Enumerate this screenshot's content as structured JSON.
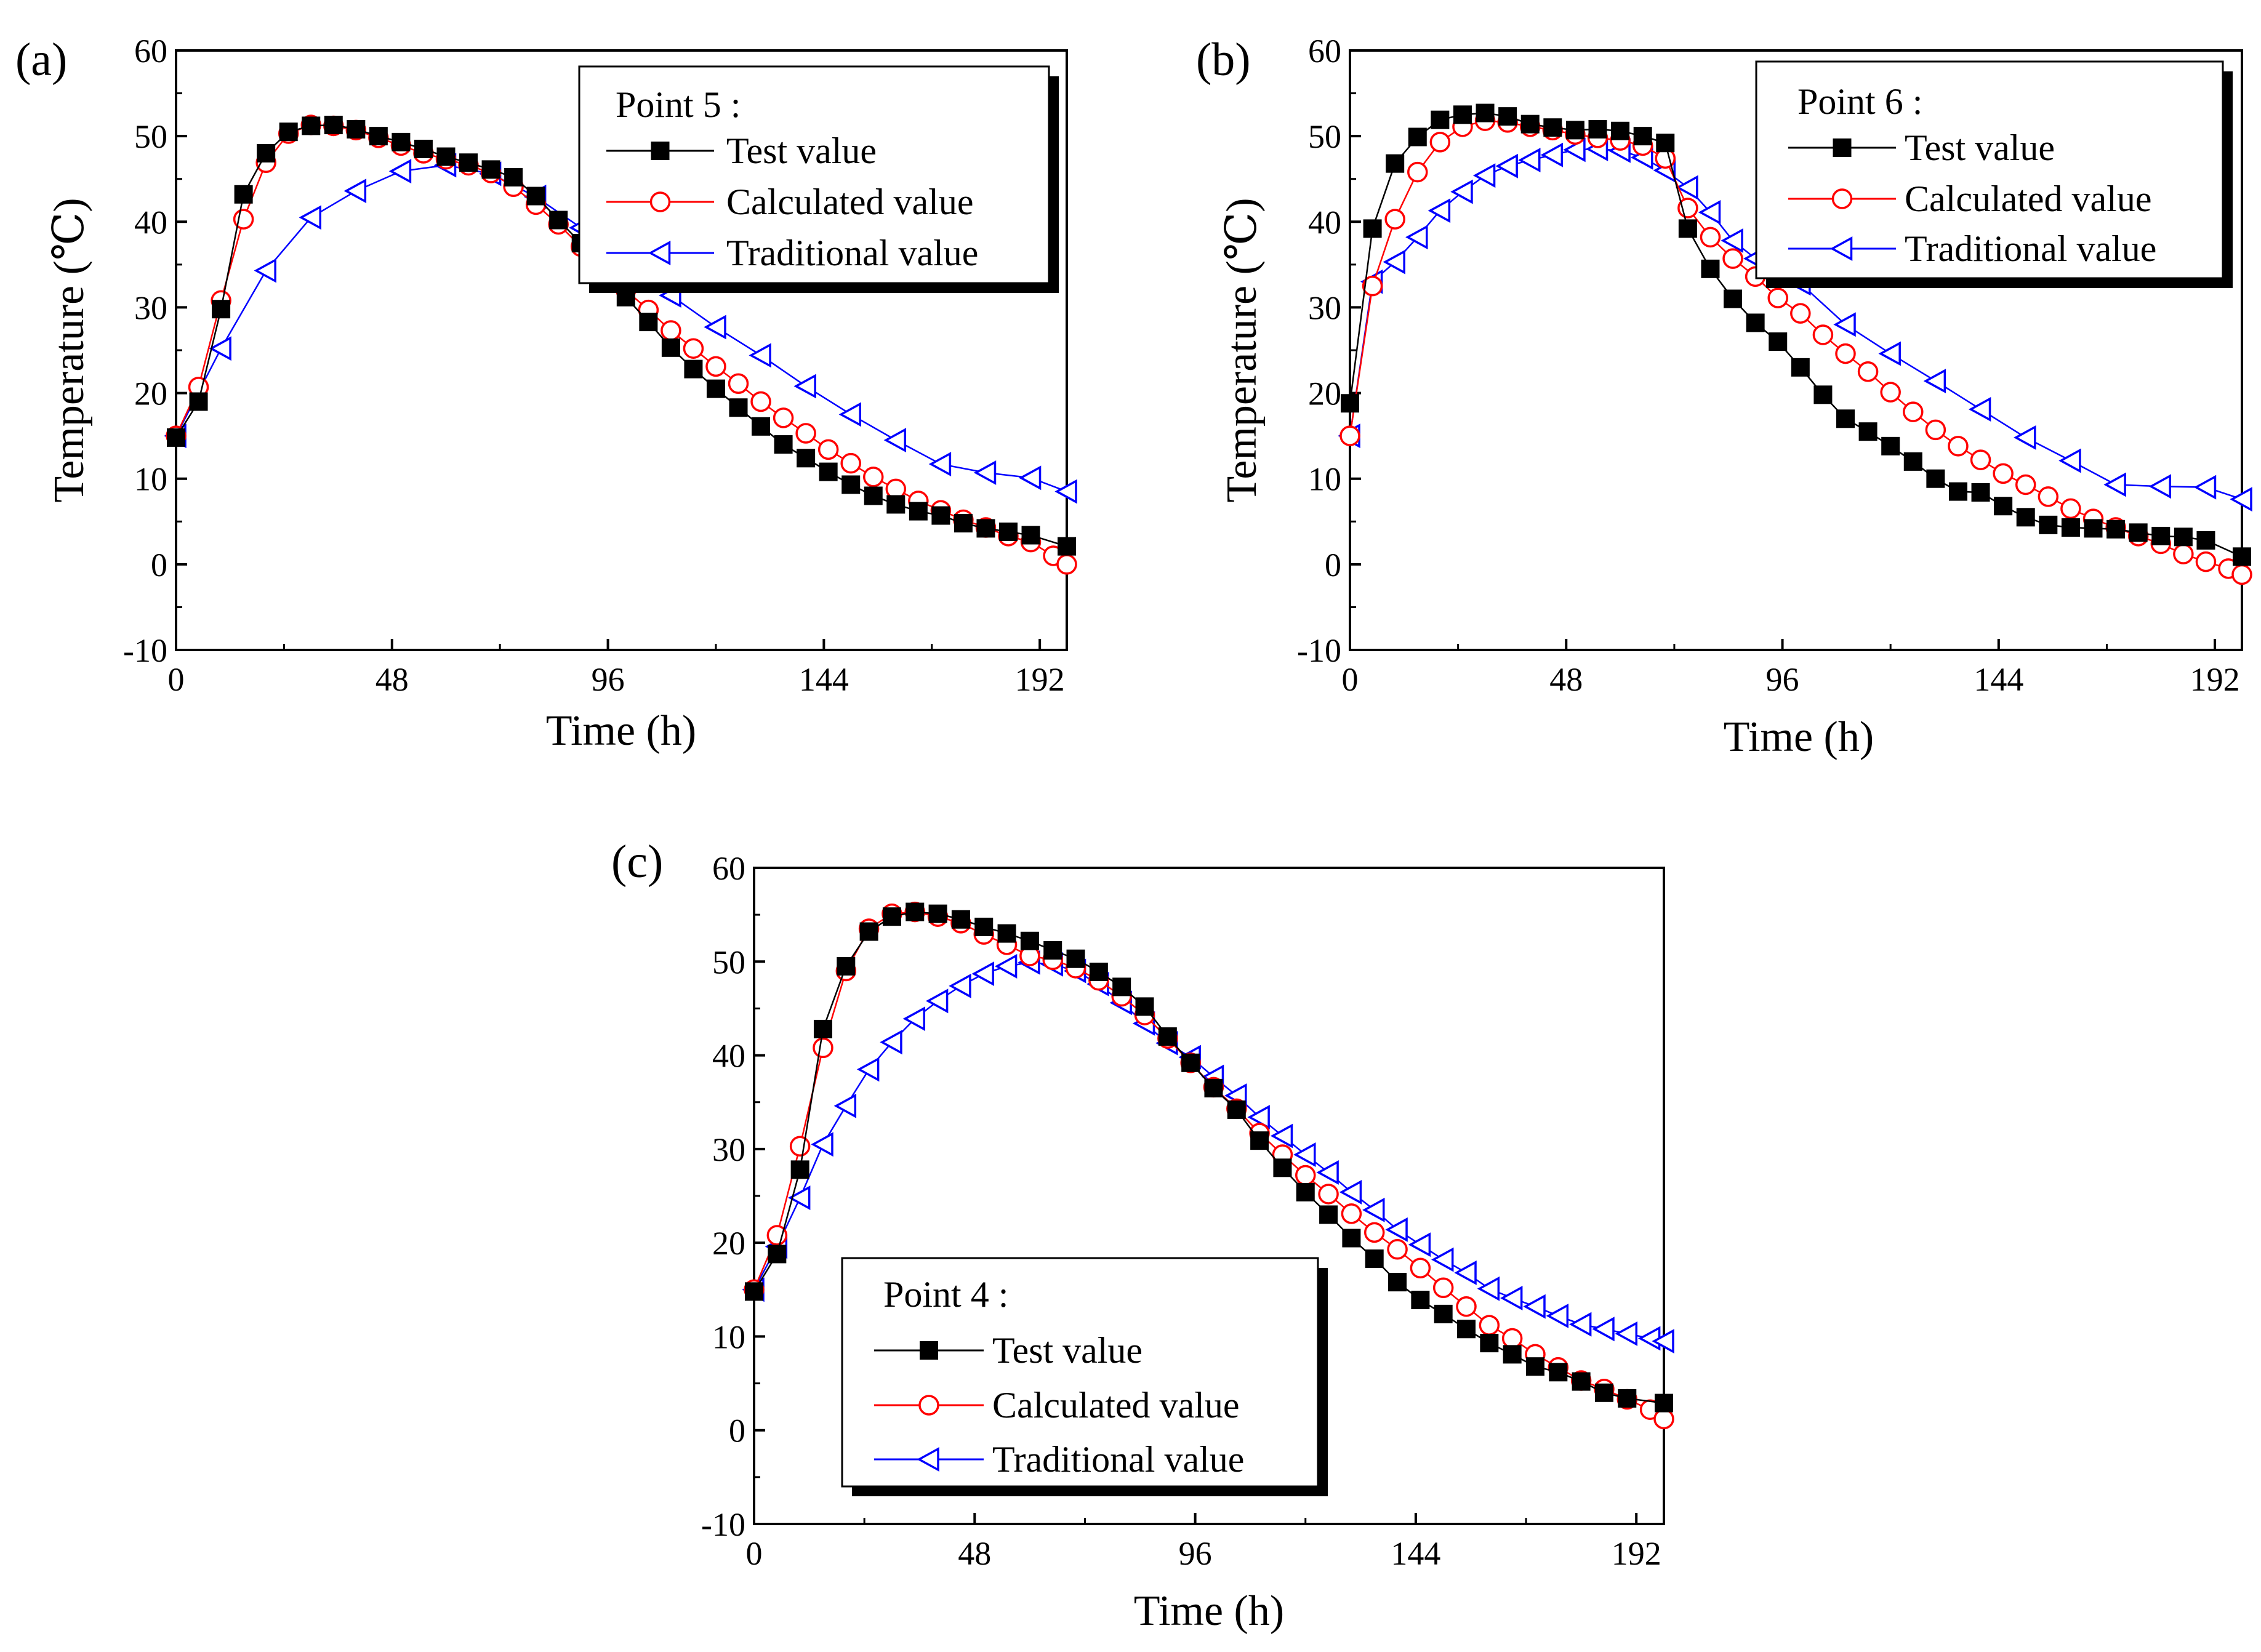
{
  "figure": {
    "x_ticks": [
      0,
      48,
      96,
      144,
      192
    ],
    "y_ticks": [
      -10,
      0,
      10,
      20,
      30,
      40,
      50,
      60
    ],
    "series_colors": {
      "test": "#000000",
      "calculated": "#ff0000",
      "traditional": "#0000ff"
    }
  },
  "chart_data": [
    {
      "panel": "(a)",
      "type": "line",
      "legend_title": "Point 5 :",
      "legend_position": "top-right",
      "xlabel": "Time (h)",
      "ylabel": "Temperature (℃)",
      "xlim": [
        0,
        198
      ],
      "ylim": [
        -10,
        60
      ],
      "x_ticks": [
        0,
        48,
        96,
        144,
        192
      ],
      "y_ticks": [
        -10,
        0,
        10,
        20,
        30,
        40,
        50,
        60
      ],
      "series": [
        {
          "name": "Test value",
          "key": "test",
          "marker": "square",
          "x": [
            0,
            5,
            10,
            15,
            20,
            25,
            30,
            35,
            40,
            45,
            50,
            55,
            60,
            65,
            70,
            75,
            80,
            85,
            90,
            95,
            100,
            105,
            110,
            115,
            120,
            125,
            130,
            135,
            140,
            145,
            150,
            155,
            160,
            165,
            170,
            175,
            180,
            185,
            190,
            198
          ],
          "values": [
            14.8,
            19,
            29.8,
            43.2,
            48,
            50.5,
            51.2,
            51.3,
            50.8,
            50,
            49.3,
            48.5,
            47.6,
            46.9,
            46.1,
            45.2,
            43,
            40.2,
            37.5,
            34.2,
            31.2,
            28.3,
            25.3,
            22.8,
            20.5,
            18.3,
            16.1,
            14,
            12.4,
            10.8,
            9.3,
            8,
            7,
            6.2,
            5.7,
            4.8,
            4.2,
            3.8,
            3.4,
            2.1
          ]
        },
        {
          "name": "Calculated value",
          "key": "calculated",
          "marker": "circle",
          "x": [
            0,
            5,
            10,
            15,
            20,
            25,
            30,
            35,
            40,
            45,
            50,
            55,
            60,
            65,
            70,
            75,
            80,
            85,
            90,
            95,
            100,
            105,
            110,
            115,
            120,
            125,
            130,
            135,
            140,
            145,
            150,
            155,
            160,
            165,
            170,
            175,
            180,
            185,
            190,
            195,
            198
          ],
          "values": [
            15,
            20.7,
            30.8,
            40.3,
            46.9,
            50.3,
            51.3,
            51.2,
            50.7,
            49.8,
            48.9,
            48,
            47.3,
            46.6,
            45.7,
            44.1,
            42,
            39.7,
            37.1,
            34.6,
            32,
            29.7,
            27.3,
            25.2,
            23.1,
            21.1,
            19,
            17.1,
            15.3,
            13.4,
            11.8,
            10.2,
            8.8,
            7.4,
            6.3,
            5.2,
            4.3,
            3.3,
            2.6,
            1,
            0
          ]
        },
        {
          "name": "Traditional value",
          "key": "traditional",
          "marker": "triangle-left",
          "x": [
            0,
            10,
            20,
            30,
            40,
            50,
            60,
            70,
            80,
            90,
            100,
            110,
            120,
            130,
            140,
            150,
            160,
            170,
            180,
            190,
            198
          ],
          "values": [
            15,
            25.2,
            34.3,
            40.5,
            43.6,
            45.9,
            46.6,
            45.6,
            42.9,
            39.3,
            35.1,
            31.4,
            27.7,
            24.4,
            20.8,
            17.5,
            14.5,
            11.7,
            10.7,
            10.1,
            8.5
          ]
        }
      ]
    },
    {
      "panel": "(b)",
      "type": "line",
      "legend_title": "Point 6 :",
      "legend_position": "top-right",
      "xlabel": "Time (h)",
      "ylabel": "Temperature (℃)",
      "xlim": [
        0,
        198
      ],
      "ylim": [
        -10,
        60
      ],
      "x_ticks": [
        0,
        48,
        96,
        144,
        192
      ],
      "y_ticks": [
        -10,
        0,
        10,
        20,
        30,
        40,
        50,
        60
      ],
      "series": [
        {
          "name": "Test value",
          "key": "test",
          "marker": "square",
          "x": [
            0,
            5,
            10,
            15,
            20,
            25,
            30,
            35,
            40,
            45,
            50,
            55,
            60,
            65,
            70,
            75,
            80,
            85,
            90,
            95,
            100,
            105,
            110,
            115,
            120,
            125,
            130,
            135,
            140,
            145,
            150,
            155,
            160,
            165,
            170,
            175,
            180,
            185,
            190,
            198
          ],
          "values": [
            18.8,
            39.2,
            46.8,
            49.9,
            51.9,
            52.5,
            52.7,
            52.3,
            51.4,
            51,
            50.7,
            50.8,
            50.6,
            50,
            49.2,
            39.2,
            34.5,
            31,
            28.2,
            26,
            23,
            19.8,
            17,
            15.5,
            13.8,
            12,
            10,
            8.5,
            8.4,
            6.8,
            5.5,
            4.6,
            4.3,
            4.2,
            4.1,
            3.7,
            3.3,
            3.2,
            2.8,
            0.9
          ]
        },
        {
          "name": "Calculated value",
          "key": "calculated",
          "marker": "circle",
          "x": [
            0,
            5,
            10,
            15,
            20,
            25,
            30,
            35,
            40,
            45,
            50,
            55,
            60,
            65,
            70,
            75,
            80,
            85,
            90,
            95,
            100,
            105,
            110,
            115,
            120,
            125,
            130,
            135,
            140,
            145,
            150,
            155,
            160,
            165,
            170,
            175,
            180,
            185,
            190,
            195,
            198
          ],
          "values": [
            15,
            32.5,
            40.3,
            45.8,
            49.3,
            51.1,
            51.8,
            51.6,
            51.1,
            50.7,
            50.2,
            49.8,
            49.5,
            48.9,
            47.4,
            41.6,
            38.2,
            35.7,
            33.6,
            31.1,
            29.3,
            26.8,
            24.6,
            22.5,
            20.1,
            17.8,
            15.7,
            13.8,
            12.2,
            10.6,
            9.3,
            7.9,
            6.5,
            5.3,
            4.3,
            3.3,
            2.4,
            1.2,
            0.3,
            -0.5,
            -1.2
          ]
        },
        {
          "name": "Traditional value",
          "key": "traditional",
          "marker": "triangle-left",
          "x": [
            0,
            5,
            10,
            15,
            20,
            25,
            30,
            35,
            40,
            45,
            50,
            55,
            60,
            65,
            70,
            75,
            80,
            85,
            90,
            95,
            100,
            110,
            120,
            130,
            140,
            150,
            160,
            170,
            180,
            190,
            198
          ],
          "values": [
            15,
            33,
            35.3,
            38.2,
            41.3,
            43.5,
            45.4,
            46.5,
            47.2,
            47.8,
            48.4,
            48.5,
            48.3,
            47.5,
            46,
            44,
            41.1,
            37.8,
            35.7,
            34.2,
            32.8,
            28,
            24.6,
            21.4,
            18.1,
            14.8,
            12.1,
            9.3,
            9.1,
            9,
            7.6
          ]
        }
      ]
    },
    {
      "panel": "(c)",
      "type": "line",
      "legend_title": "Point 4 :",
      "legend_position": "bottom-left",
      "xlabel": "Time (h)",
      "ylabel": "",
      "xlim": [
        0,
        198
      ],
      "ylim": [
        -10,
        60
      ],
      "x_ticks": [
        0,
        48,
        96,
        144,
        192
      ],
      "y_ticks": [
        -10,
        0,
        10,
        20,
        30,
        40,
        50,
        60
      ],
      "series": [
        {
          "name": "Test value",
          "key": "test",
          "marker": "square",
          "x": [
            0,
            5,
            10,
            15,
            20,
            25,
            30,
            35,
            40,
            45,
            50,
            55,
            60,
            65,
            70,
            75,
            80,
            85,
            90,
            95,
            100,
            105,
            110,
            115,
            120,
            125,
            130,
            135,
            140,
            145,
            150,
            155,
            160,
            165,
            170,
            175,
            180,
            185,
            190,
            198
          ],
          "values": [
            14.8,
            18.8,
            27.8,
            42.8,
            49.5,
            53.2,
            54.8,
            55.3,
            55.1,
            54.5,
            53.7,
            53,
            52.2,
            51.2,
            50.3,
            48.9,
            47.3,
            45.2,
            42,
            39.2,
            36.5,
            34.2,
            30.9,
            28,
            25.4,
            23,
            20.5,
            18.3,
            15.8,
            13.9,
            12.4,
            10.8,
            9.3,
            8.1,
            6.8,
            6.2,
            5.2,
            4,
            3.4,
            2.9
          ]
        },
        {
          "name": "Calculated value",
          "key": "calculated",
          "marker": "circle",
          "x": [
            0,
            5,
            10,
            15,
            20,
            25,
            30,
            35,
            40,
            45,
            50,
            55,
            60,
            65,
            70,
            75,
            80,
            85,
            90,
            95,
            100,
            105,
            110,
            115,
            120,
            125,
            130,
            135,
            140,
            145,
            150,
            155,
            160,
            165,
            170,
            175,
            180,
            185,
            190,
            195,
            198
          ],
          "values": [
            15,
            20.8,
            30.3,
            40.8,
            49,
            53.5,
            55.1,
            55.3,
            54.8,
            54.1,
            52.9,
            51.8,
            50.6,
            50.2,
            49.3,
            48,
            46.3,
            44.3,
            41.8,
            39.2,
            36.6,
            34.3,
            31.7,
            29.4,
            27.2,
            25.2,
            23.1,
            21.1,
            19.3,
            17.3,
            15.2,
            13.2,
            11.2,
            9.8,
            8.1,
            6.7,
            5.3,
            4.4,
            3.3,
            2.2,
            1.2
          ]
        },
        {
          "name": "Traditional value",
          "key": "traditional",
          "marker": "triangle-left",
          "x": [
            0,
            5,
            10,
            15,
            20,
            25,
            30,
            35,
            40,
            45,
            50,
            55,
            60,
            65,
            70,
            75,
            80,
            85,
            90,
            95,
            100,
            105,
            110,
            115,
            120,
            125,
            130,
            135,
            140,
            145,
            150,
            155,
            160,
            165,
            170,
            175,
            180,
            185,
            190,
            195,
            198
          ],
          "values": [
            15,
            19.6,
            24.8,
            30.5,
            34.6,
            38.5,
            41.4,
            43.9,
            45.8,
            47.4,
            48.7,
            49.5,
            49.9,
            49.7,
            49,
            47.6,
            45.6,
            43.4,
            41.3,
            39.8,
            37.7,
            35.7,
            33.4,
            31.4,
            29.4,
            27.5,
            25.4,
            23.5,
            21.4,
            19.8,
            18.2,
            16.8,
            15.1,
            14.1,
            13.2,
            12.2,
            11.3,
            10.8,
            10.3,
            9.8,
            9.5
          ]
        }
      ]
    }
  ]
}
